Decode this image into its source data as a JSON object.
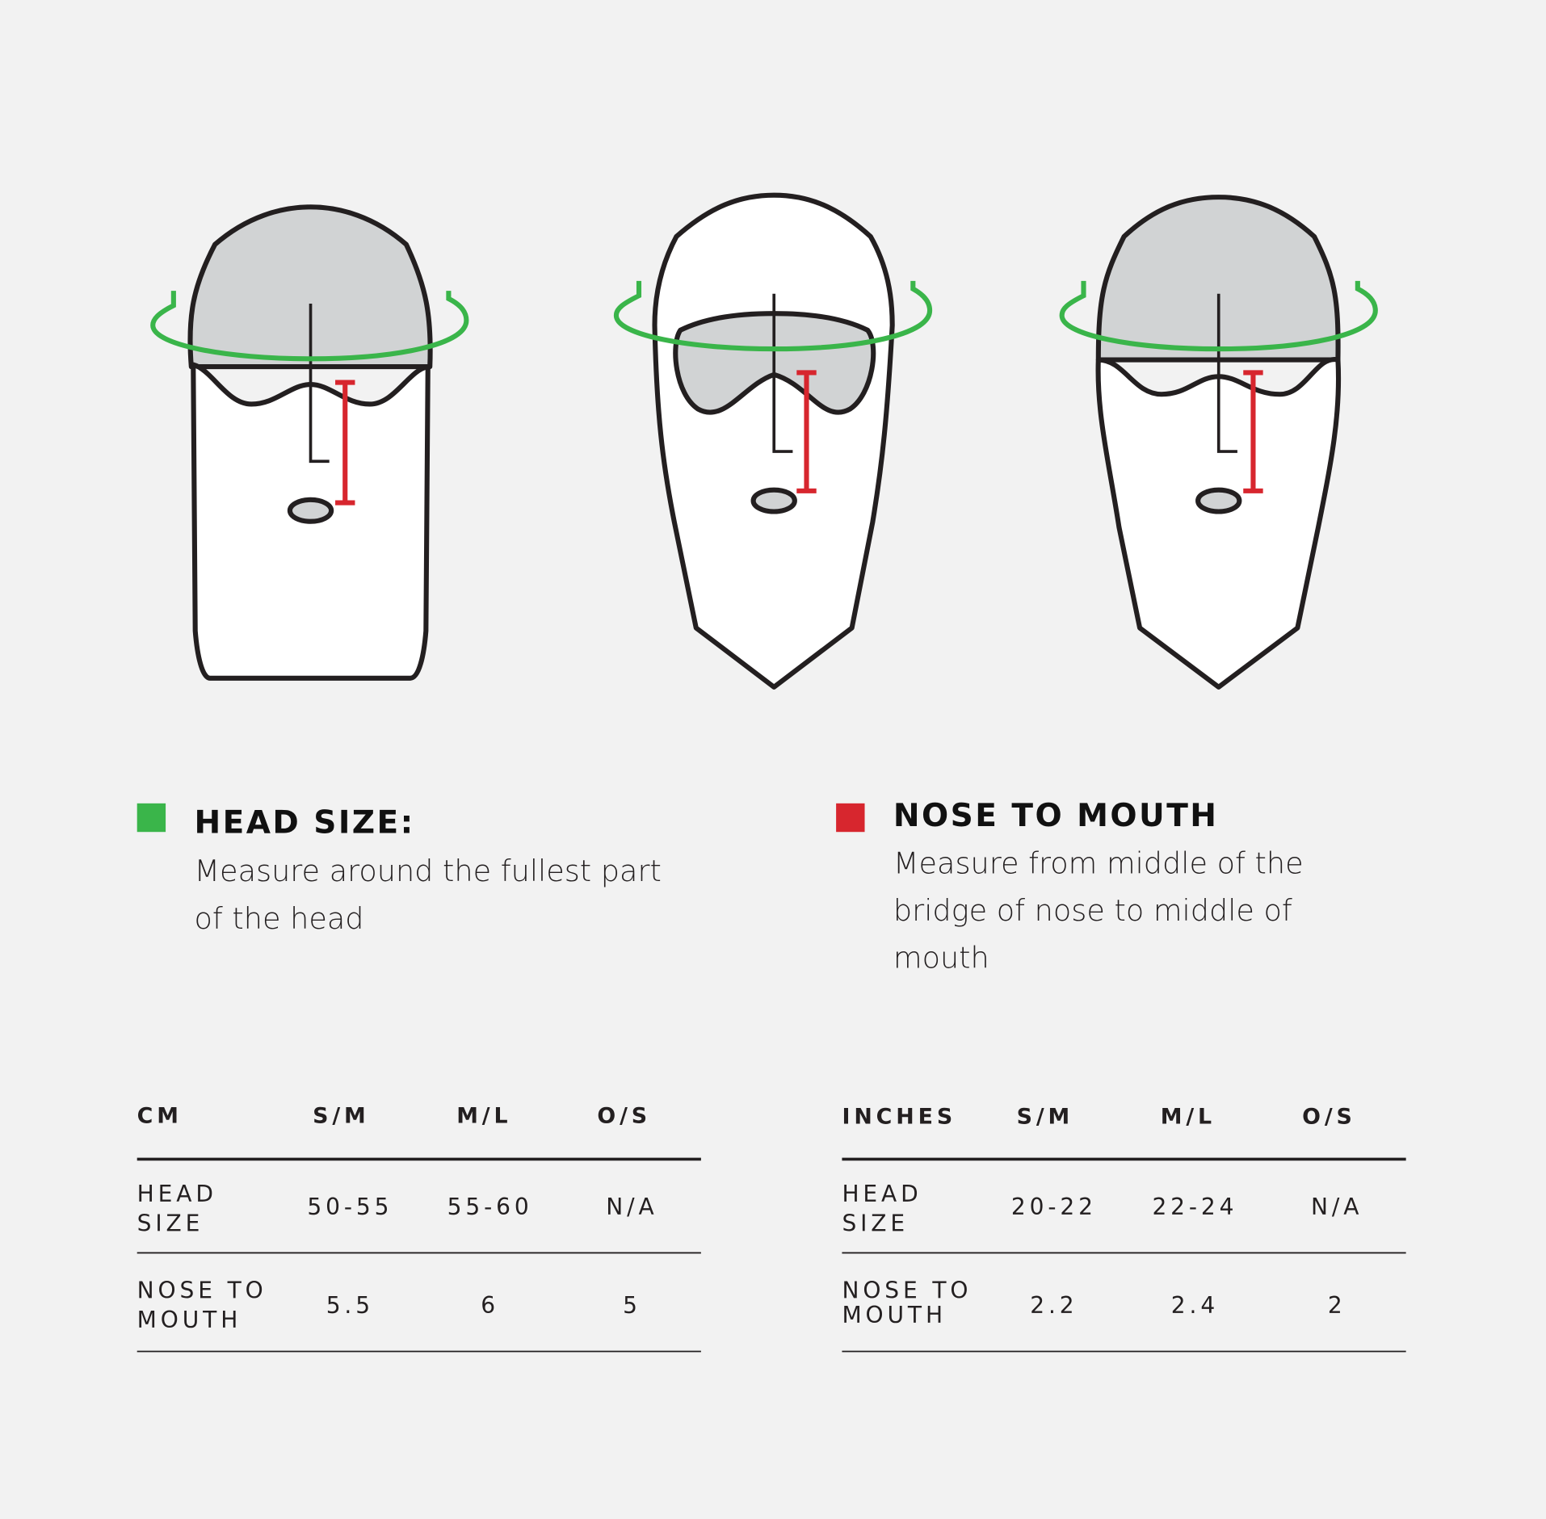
{
  "colors": {
    "head_size": "#3ab54a",
    "nose_to_mouth": "#d7262e",
    "mask_gray": "#d1d3d4",
    "background": "#f2f2f2"
  },
  "legend": {
    "head_size": {
      "title": "HEAD SIZE:",
      "lines": [
        "Measure around the fullest part",
        "of the head"
      ]
    },
    "nose_to_mouth": {
      "title": "NOSE TO MOUTH",
      "lines": [
        "Measure from middle of the",
        "bridge of nose to middle of",
        "mouth"
      ]
    }
  },
  "tables": [
    {
      "unit": "CM",
      "columns": [
        "S/M",
        "M/L",
        "O/S"
      ],
      "rows": [
        {
          "label": [
            "HEAD",
            "SIZE"
          ],
          "values": [
            "50-55",
            "55-60",
            "N/A"
          ]
        },
        {
          "label": [
            "NOSE TO",
            "MOUTH"
          ],
          "values": [
            "5.5",
            "6",
            "5"
          ]
        }
      ]
    },
    {
      "unit": "INCHES",
      "columns": [
        "S/M",
        "M/L",
        "O/S"
      ],
      "rows": [
        {
          "label": [
            "HEAD",
            "SIZE"
          ],
          "values": [
            "20-22",
            "22-24",
            "N/A"
          ]
        },
        {
          "label": [
            "NOSE TO",
            "MOUTH"
          ],
          "values": [
            "2.2",
            "2.4",
            "2"
          ]
        }
      ]
    }
  ]
}
